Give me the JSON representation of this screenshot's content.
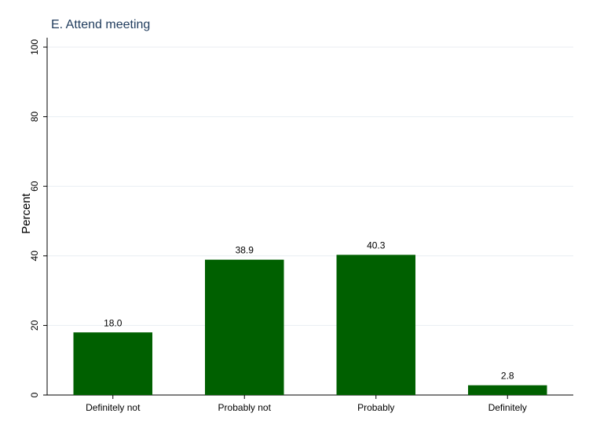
{
  "chart_data": {
    "type": "bar",
    "title": "E. Attend meeting",
    "xlabel": "",
    "ylabel": "Percent",
    "categories": [
      "Definitely not",
      "Probably not",
      "Probably",
      "Definitely"
    ],
    "values": [
      18.0,
      38.9,
      40.3,
      2.8
    ],
    "value_labels": [
      "18.0",
      "38.9",
      "40.3",
      "2.8"
    ],
    "ylim": [
      0,
      100
    ],
    "yticks": [
      0,
      20,
      40,
      60,
      80,
      100
    ],
    "ytick_labels": [
      "0",
      "20",
      "40",
      "60",
      "80",
      "100"
    ],
    "grid": true,
    "legend": "none",
    "bar_color": "#006000"
  }
}
